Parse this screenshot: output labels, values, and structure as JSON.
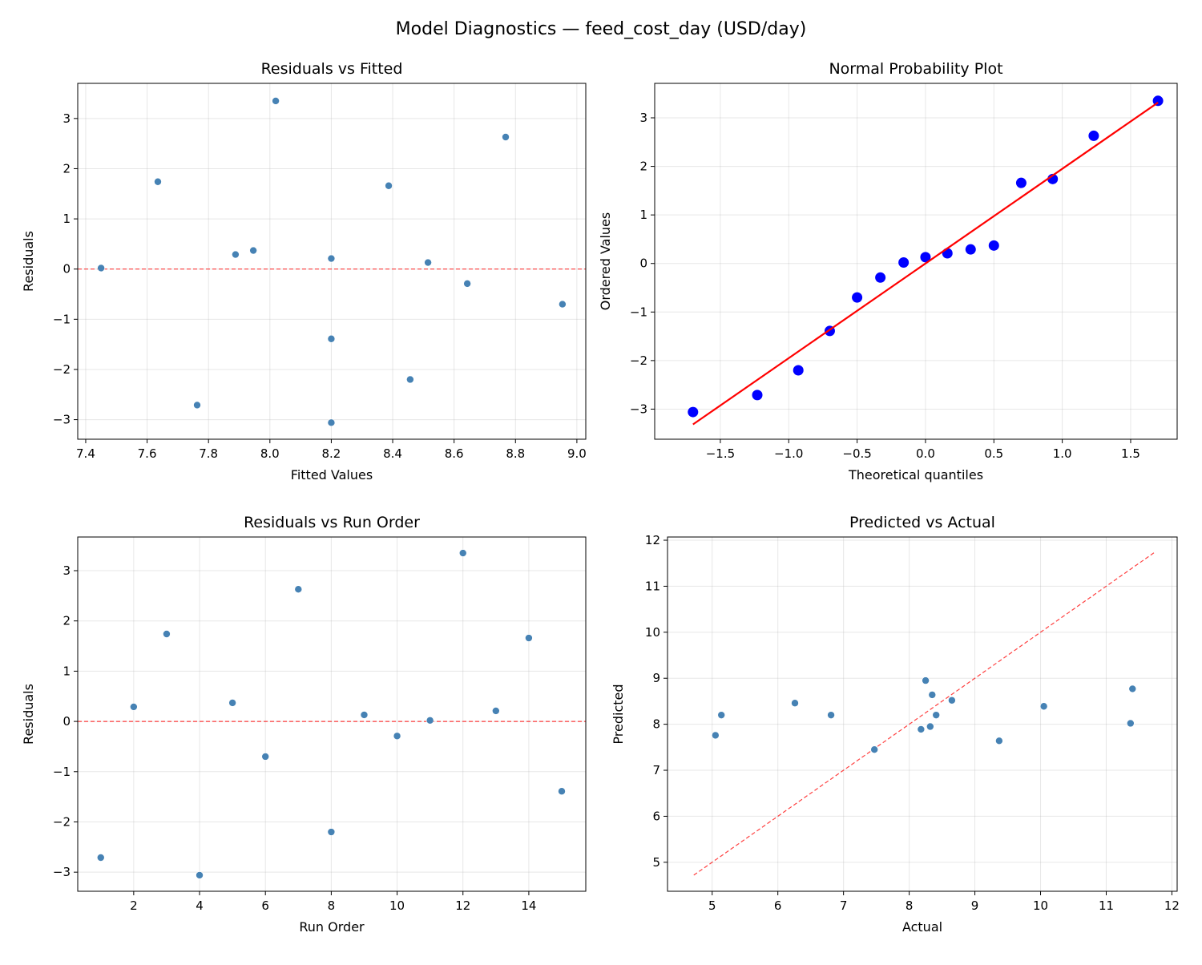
{
  "suptitle": "Model Diagnostics — feed_cost_day (USD/day)",
  "chart_data": [
    {
      "type": "scatter",
      "title": "Residuals vs Fitted",
      "xlabel": "Fitted Values",
      "ylabel": "Residuals",
      "xlim": [
        7.374,
        9.029
      ],
      "ylim": [
        -3.39,
        3.7
      ],
      "xticks": [
        7.4,
        7.6,
        7.8,
        8.0,
        8.2,
        8.4,
        8.6,
        8.8,
        9.0
      ],
      "xtick_decimals": 1,
      "yticks": [
        -3,
        -2,
        -1,
        0,
        1,
        2,
        3
      ],
      "ytick_decimals": 0,
      "grid": true,
      "point_color": "#4682b4",
      "x": [
        7.763,
        7.888,
        7.635,
        8.2,
        7.946,
        8.953,
        8.768,
        8.457,
        8.515,
        8.643,
        7.45,
        8.019,
        8.2,
        8.387,
        8.2
      ],
      "y": [
        -2.71,
        0.29,
        1.74,
        -3.06,
        0.37,
        -0.7,
        2.63,
        -2.2,
        0.13,
        -0.29,
        0.02,
        3.35,
        0.21,
        1.66,
        -1.39
      ],
      "reference_line": {
        "type": "horizontal",
        "y": 0,
        "color": "#ff0000",
        "style": "dashed"
      }
    },
    {
      "type": "scatter",
      "title": "Normal Probability Plot",
      "xlabel": "Theoretical quantiles",
      "ylabel": "Ordered Values",
      "xlim": [
        -1.98,
        1.84
      ],
      "ylim": [
        -3.62,
        3.71
      ],
      "xticks": [
        -1.5,
        -1.0,
        -0.5,
        0.0,
        0.5,
        1.0,
        1.5
      ],
      "xtick_decimals": 1,
      "yticks": [
        -3,
        -2,
        -1,
        0,
        1,
        2,
        3
      ],
      "ytick_decimals": 0,
      "grid": true,
      "point_color": "#0000ff",
      "x": [
        -1.7,
        -1.23,
        -0.93,
        -0.7,
        -0.5,
        -0.33,
        -0.16,
        0.0,
        0.16,
        0.33,
        0.5,
        0.7,
        0.93,
        1.23,
        1.7
      ],
      "y": [
        -3.06,
        -2.71,
        -2.2,
        -1.39,
        -0.7,
        -0.29,
        0.02,
        0.13,
        0.21,
        0.29,
        0.37,
        1.66,
        1.74,
        2.63,
        3.35
      ],
      "fit_line": {
        "slope": 1.95,
        "intercept": 0.0,
        "x_range": [
          -1.7,
          1.7
        ],
        "color": "#ff0000",
        "style": "solid"
      }
    },
    {
      "type": "scatter",
      "title": "Residuals vs Run Order",
      "xlabel": "Run Order",
      "ylabel": "Residuals",
      "xlim": [
        0.3,
        15.73
      ],
      "ylim": [
        -3.38,
        3.67
      ],
      "xticks": [
        2,
        4,
        6,
        8,
        10,
        12,
        14
      ],
      "xtick_decimals": 0,
      "yticks": [
        -3,
        -2,
        -1,
        0,
        1,
        2,
        3
      ],
      "ytick_decimals": 0,
      "grid": true,
      "point_color": "#4682b4",
      "x": [
        1,
        2,
        3,
        4,
        5,
        6,
        7,
        8,
        9,
        10,
        11,
        12,
        13,
        14,
        15
      ],
      "y": [
        -2.71,
        0.29,
        1.74,
        -3.06,
        0.37,
        -0.7,
        2.63,
        -2.2,
        0.13,
        -0.29,
        0.02,
        3.35,
        0.21,
        1.66,
        -1.39
      ],
      "reference_line": {
        "type": "horizontal",
        "y": 0,
        "color": "#ff0000",
        "style": "dashed"
      }
    },
    {
      "type": "scatter",
      "title": "Predicted vs Actual",
      "xlabel": "Actual",
      "ylabel": "Predicted",
      "xlim": [
        4.32,
        12.08
      ],
      "ylim": [
        4.37,
        12.07
      ],
      "xticks": [
        5,
        6,
        7,
        8,
        9,
        10,
        11,
        12
      ],
      "xtick_decimals": 0,
      "yticks": [
        5,
        6,
        7,
        8,
        9,
        10,
        11,
        12
      ],
      "ytick_decimals": 0,
      "grid": true,
      "point_color": "#4682b4",
      "x": [
        5.05,
        8.18,
        9.37,
        5.14,
        8.32,
        8.25,
        11.4,
        6.26,
        8.65,
        8.35,
        7.47,
        11.37,
        8.41,
        10.05,
        6.81
      ],
      "y": [
        7.76,
        7.89,
        7.64,
        8.2,
        7.95,
        8.95,
        8.77,
        8.46,
        8.52,
        8.64,
        7.45,
        8.02,
        8.2,
        8.39,
        8.2
      ],
      "reference_line": {
        "type": "diagonal",
        "range": [
          4.72,
          11.75
        ],
        "color": "#ff0000",
        "style": "dashed"
      }
    }
  ]
}
